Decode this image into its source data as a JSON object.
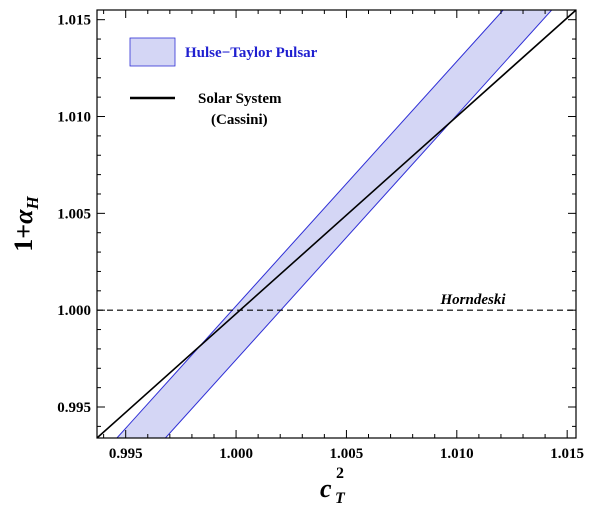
{
  "chart_data": {
    "type": "line",
    "xlabel": {
      "base": "c",
      "sup": "2",
      "sub": "T"
    },
    "ylabel": {
      "prefix": "1+",
      "greek": "α",
      "sub": "H"
    },
    "xlim": [
      0.9937,
      1.0154
    ],
    "ylim": [
      0.9934,
      1.0155
    ],
    "xticks": [
      0.995,
      1.0,
      1.005,
      1.01,
      1.015
    ],
    "yticks": [
      0.995,
      1.0,
      1.005,
      1.01,
      1.015
    ],
    "xtick_labels": [
      "0.995",
      "1.000",
      "1.005",
      "1.010",
      "1.015"
    ],
    "ytick_labels": [
      "0.995",
      "1.000",
      "1.005",
      "1.010",
      "1.015"
    ],
    "grid": false,
    "legend_position": "top-left",
    "colors": {
      "band_fill": "#d4d6f5",
      "band_edge": "#2f2fd6",
      "legend_band_text": "#1f1fd0",
      "line": "#000000"
    },
    "series": [
      {
        "name": "Hulse−Taylor Pulsar",
        "kind": "band",
        "polygon": [
          [
            0.9946,
            0.9934
          ],
          [
            1.0121,
            1.0155
          ],
          [
            1.0143,
            1.0155
          ],
          [
            0.9968,
            0.9934
          ]
        ]
      },
      {
        "name": "Solar System",
        "name_line2": "(Cassini)",
        "kind": "line",
        "x": [
          0.9937,
          1.0154
        ],
        "y": [
          0.9934,
          1.0155
        ]
      },
      {
        "name": "Horndeski",
        "kind": "hline-dashed",
        "y": 1.0
      }
    ]
  }
}
